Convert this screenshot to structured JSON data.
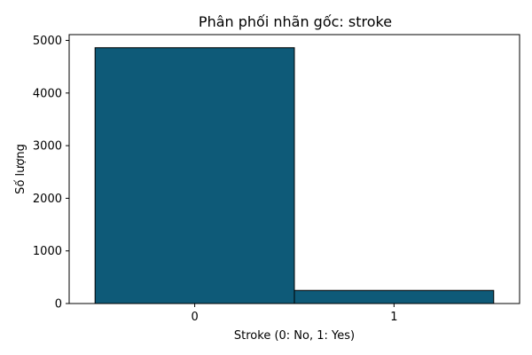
{
  "chart_data": {
    "type": "bar",
    "title": "Phân phối nhãn gốc: stroke",
    "xlabel": "Stroke (0: No, 1: Yes)",
    "ylabel": "Số lượng",
    "categories": [
      "0",
      "1"
    ],
    "values": [
      4861,
      249
    ],
    "ylim": [
      0,
      5110
    ],
    "yticks": [
      0,
      1000,
      2000,
      3000,
      4000,
      5000
    ],
    "grid": false,
    "bar_color": "#0e5a78",
    "edge_color": "#000000"
  }
}
